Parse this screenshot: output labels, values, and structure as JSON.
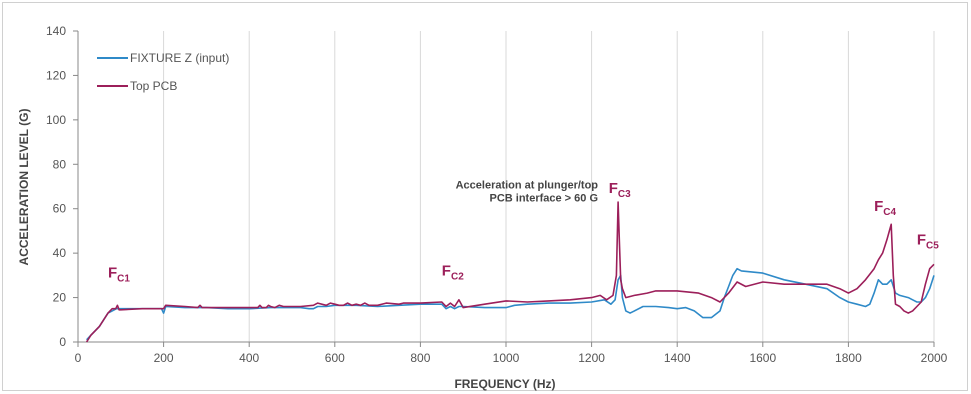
{
  "chart_data": {
    "type": "line",
    "xlabel": "FREQUENCY (Hz)",
    "ylabel": "ACCELERATION LEVEL (G)",
    "xlim": [
      0,
      2000
    ],
    "ylim": [
      0,
      140
    ],
    "xticks": [
      0,
      200,
      400,
      600,
      800,
      1000,
      1200,
      1400,
      1600,
      1800,
      2000
    ],
    "yticks": [
      0,
      20,
      40,
      60,
      80,
      100,
      120,
      140
    ],
    "grid": "vertical",
    "legend": {
      "position": "top-left"
    },
    "series": [
      {
        "name": "FIXTURE Z (input)",
        "color": "#2f8ac8",
        "x": [
          20,
          30,
          50,
          70,
          80,
          90,
          100,
          150,
          195,
          200,
          205,
          250,
          300,
          350,
          400,
          450,
          500,
          520,
          540,
          550,
          560,
          580,
          600,
          620,
          650,
          700,
          750,
          800,
          850,
          860,
          870,
          880,
          890,
          900,
          950,
          1000,
          1020,
          1050,
          1100,
          1150,
          1200,
          1230,
          1245,
          1255,
          1262,
          1268,
          1272,
          1280,
          1290,
          1300,
          1320,
          1350,
          1380,
          1400,
          1420,
          1440,
          1460,
          1480,
          1500,
          1510,
          1520,
          1530,
          1540,
          1550,
          1600,
          1650,
          1700,
          1750,
          1780,
          1800,
          1820,
          1840,
          1850,
          1860,
          1870,
          1880,
          1890,
          1900,
          1910,
          1920,
          1940,
          1950,
          1960,
          1970,
          1980,
          1990,
          2000
        ],
        "y": [
          1,
          3,
          7,
          13,
          14,
          15,
          15,
          15,
          15,
          13,
          16,
          15.5,
          15.5,
          15,
          15,
          15.5,
          15.5,
          15.5,
          15,
          15,
          16,
          16,
          16.5,
          16.5,
          16.5,
          16,
          16.5,
          17,
          17,
          15,
          16,
          15,
          16,
          16,
          15.5,
          15.5,
          16.5,
          17,
          17.5,
          17.5,
          18,
          19,
          17,
          19,
          28,
          30,
          20,
          14,
          13,
          14,
          16,
          16,
          15.5,
          15,
          15.5,
          14,
          11,
          11,
          14,
          20,
          25,
          30,
          33,
          32,
          31,
          28,
          26,
          24,
          20,
          18,
          17,
          16,
          17,
          22,
          28,
          26,
          26,
          28,
          22,
          21,
          20,
          19,
          18,
          18,
          20,
          24,
          30
        ]
      },
      {
        "name": "Top PCB",
        "color": "#9c1f5a",
        "x": [
          20,
          30,
          50,
          70,
          80,
          88,
          92,
          96,
          100,
          150,
          195,
          200,
          205,
          250,
          280,
          285,
          290,
          300,
          350,
          400,
          420,
          425,
          430,
          440,
          445,
          450,
          460,
          470,
          480,
          500,
          520,
          550,
          560,
          580,
          590,
          600,
          610,
          620,
          630,
          640,
          650,
          660,
          670,
          680,
          700,
          720,
          750,
          760,
          800,
          850,
          860,
          870,
          880,
          890,
          900,
          950,
          1000,
          1050,
          1100,
          1150,
          1200,
          1220,
          1235,
          1250,
          1258,
          1262,
          1265,
          1268,
          1272,
          1280,
          1300,
          1330,
          1350,
          1400,
          1450,
          1480,
          1500,
          1520,
          1540,
          1560,
          1600,
          1650,
          1700,
          1750,
          1780,
          1800,
          1820,
          1840,
          1860,
          1870,
          1880,
          1890,
          1900,
          1905,
          1910,
          1920,
          1930,
          1940,
          1950,
          1960,
          1970,
          1980,
          1990,
          2000
        ],
        "y": [
          0,
          3,
          7,
          13,
          15,
          15,
          16.5,
          14.5,
          14.5,
          15,
          15,
          15,
          16.5,
          16,
          15.5,
          16.5,
          15.5,
          15.5,
          15.5,
          15.5,
          15.5,
          16.5,
          15.5,
          15.5,
          16.5,
          16,
          15.5,
          16.5,
          16,
          16,
          16,
          16.5,
          17.5,
          16.5,
          17.5,
          17,
          16.5,
          16.5,
          17.5,
          16.5,
          17,
          16.5,
          17.5,
          16.5,
          16.5,
          17.5,
          17,
          17.5,
          17.5,
          18,
          16,
          17.5,
          16,
          19,
          15.5,
          17,
          18.5,
          18,
          18.5,
          19,
          20,
          21,
          19,
          21,
          30,
          63,
          45,
          28,
          24,
          20,
          21,
          22,
          23,
          23,
          22,
          20,
          18,
          22,
          27,
          25,
          27,
          26,
          26,
          26,
          24,
          22,
          24,
          28,
          33,
          37,
          40,
          46,
          53,
          30,
          17,
          16,
          14,
          13,
          14,
          16,
          18,
          26,
          33,
          35
        ]
      }
    ],
    "annotations": [
      {
        "id": "fc1",
        "main": "F",
        "sub": "C1",
        "x": 70,
        "y": 29
      },
      {
        "id": "fc2",
        "main": "F",
        "sub": "C2",
        "x": 850,
        "y": 30
      },
      {
        "id": "fc3",
        "main": "F",
        "sub": "C3",
        "x": 1240,
        "y": 67
      },
      {
        "id": "fc4",
        "main": "F",
        "sub": "C4",
        "x": 1860,
        "y": 59
      },
      {
        "id": "fc5",
        "main": "F",
        "sub": "C5",
        "x": 1960,
        "y": 44
      }
    ],
    "callout": {
      "lines": [
        "Acceleration at plunger/top",
        "PCB interface > 60 G"
      ],
      "x": 1215,
      "y": 69
    }
  }
}
